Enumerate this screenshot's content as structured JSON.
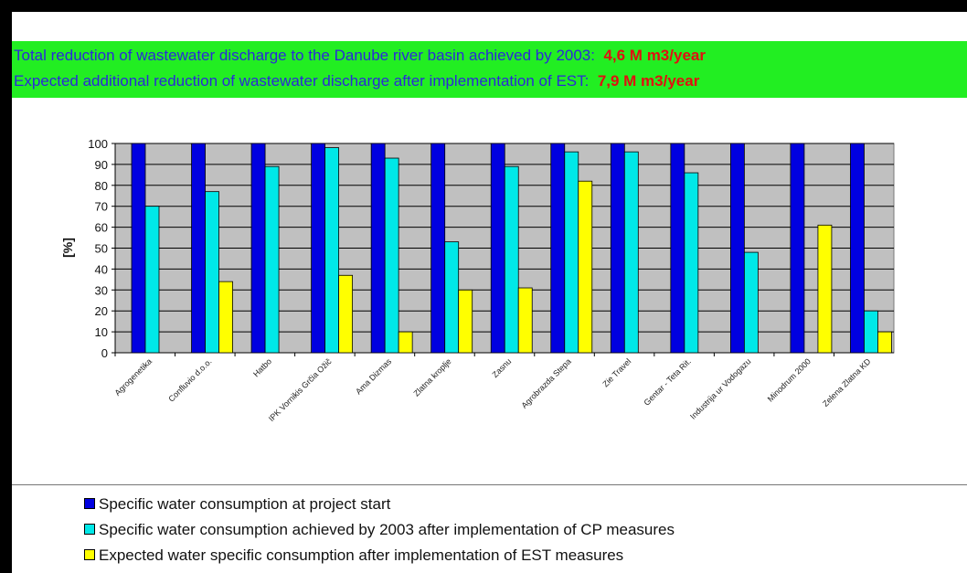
{
  "header": {
    "line1_text": "Total reduction of wastewater discharge to the Danube river basin achieved by 2003:",
    "line1_value": "4,6 M m3/year",
    "line2_text": "Expected additional reduction of wastewater discharge after implementation of EST:",
    "line2_value": "7,9 M m3/year"
  },
  "colors": {
    "banner": "#22ee22",
    "banner_text": "#2a2ad8",
    "banner_value": "#e01010",
    "plot_bg": "#c0c0c0",
    "series": [
      "#0000e0",
      "#00e8e8",
      "#ffff00"
    ]
  },
  "chart_data": {
    "type": "bar",
    "ylabel": "[%]",
    "ylim": [
      0,
      100
    ],
    "yticks": [
      0,
      10,
      20,
      30,
      40,
      50,
      60,
      70,
      80,
      90,
      100
    ],
    "grid": true,
    "legend_position": "bottom",
    "categories": [
      "Agrogenetika",
      "Confluvio d.o.o.",
      "Hatbo",
      "IPK Vornikis Grčia Ožič",
      "Ama Dizmas",
      "Zlatna kroplje",
      "Zasnu",
      "Agrobrazda Stepa",
      "Zie Travel",
      "Gentar - Teta Rit.",
      "Industrija ur Vodogazu",
      "Minodrum 2000",
      "Zelena Zlatna KD"
    ],
    "series": [
      {
        "name": "Specific water  consumption at project start",
        "values": [
          100,
          100,
          100,
          100,
          100,
          100,
          100,
          100,
          100,
          100,
          100,
          100,
          100
        ]
      },
      {
        "name": "Specific water  consumption achieved by 2003 after implementation of CP measures",
        "values": [
          70,
          77,
          89,
          98,
          93,
          53,
          89,
          96,
          96,
          86,
          48,
          null,
          20
        ]
      },
      {
        "name": "Expected water specific consumption after implementation of EST measures",
        "values": [
          null,
          34,
          null,
          37,
          10,
          30,
          31,
          82,
          null,
          null,
          null,
          61,
          10
        ]
      }
    ]
  }
}
